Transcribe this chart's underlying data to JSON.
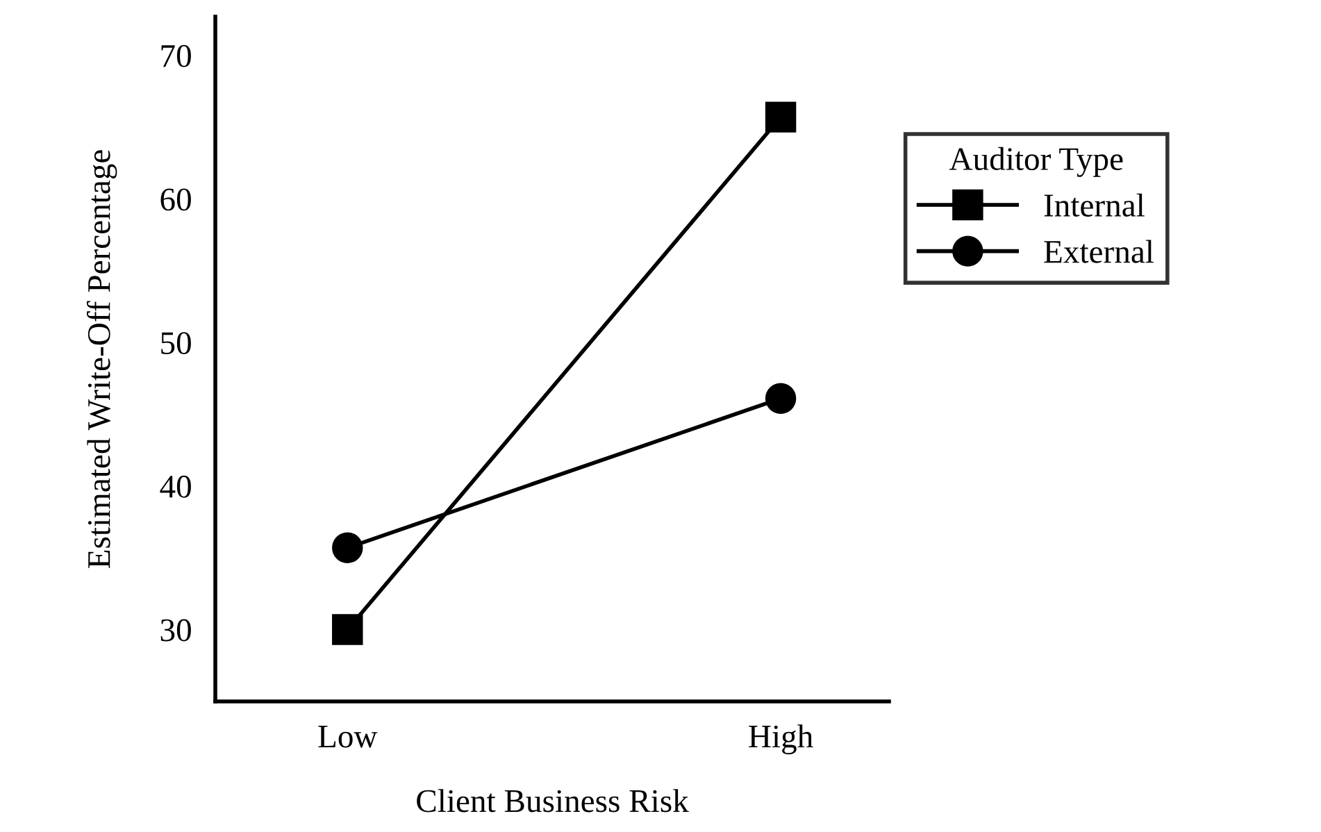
{
  "chart_data": {
    "type": "line",
    "xlabel": "Client Business Risk",
    "ylabel": "Estimated Write-Off Percentage",
    "legend_title": "Auditor Type",
    "categories": [
      "Low",
      "High"
    ],
    "series": [
      {
        "name": "Internal",
        "color": "#000000",
        "marker": "square",
        "values": [
          30,
          65.7
        ]
      },
      {
        "name": "External",
        "color": "#000000",
        "marker": "circle",
        "values": [
          35.7,
          46.1
        ]
      }
    ],
    "ylim": [
      25,
      72.7
    ],
    "yticks": [
      30,
      40,
      50,
      60,
      70
    ],
    "grid": false,
    "legend": "right",
    "line_style": "solid"
  }
}
